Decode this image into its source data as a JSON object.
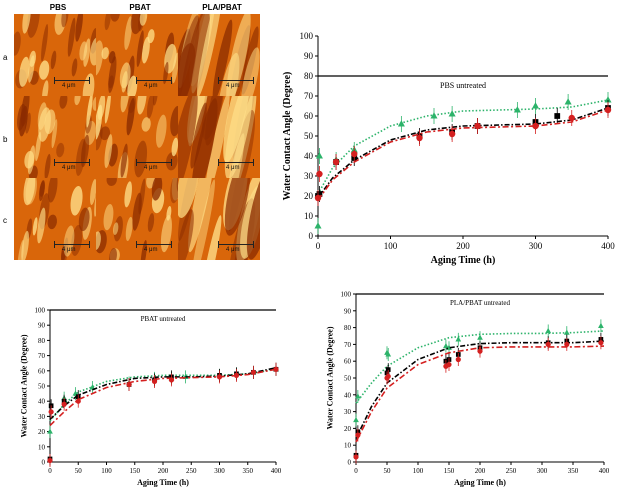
{
  "afm": {
    "columns": [
      "PBS",
      "PBAT",
      "PLA/PBAT"
    ],
    "rows": [
      "a",
      "b",
      "c"
    ],
    "scale_label": "4 μm",
    "colors": {
      "dark": "#8a2b00",
      "mid": "#d9660a",
      "light": "#ffe08a"
    }
  },
  "chart_data": [
    {
      "type": "scatter",
      "title": "PBS untreated",
      "xlabel": "Aging Time (h)",
      "ylabel": "Water Contact Angle (Degree)",
      "xlim": [
        0,
        400
      ],
      "ylim": [
        0,
        100
      ],
      "xticks": [
        0,
        100,
        200,
        300,
        400
      ],
      "yticks": [
        0,
        10,
        20,
        30,
        40,
        50,
        60,
        70,
        80,
        90,
        100
      ],
      "reference_line_y": 80,
      "series": [
        {
          "color": "#2cb36a",
          "marker": "triangle",
          "x": [
            0,
            2,
            25,
            50,
            115,
            160,
            185,
            275,
            300,
            345,
            400
          ],
          "y": [
            5,
            40,
            38,
            43,
            56,
            60,
            61,
            63,
            65,
            67,
            68
          ],
          "fit_x": [
            0,
            20,
            50,
            100,
            150,
            200,
            250,
            300,
            350,
            400
          ],
          "fit_y": [
            21,
            34,
            45,
            55,
            60,
            62.5,
            63,
            63.5,
            64.5,
            68
          ]
        },
        {
          "color": "#000000",
          "marker": "square",
          "x": [
            0,
            2,
            25,
            50,
            140,
            185,
            220,
            300,
            330,
            400
          ],
          "y": [
            20,
            21,
            37,
            39,
            50,
            52,
            55,
            57,
            60,
            64
          ],
          "fit_x": [
            0,
            20,
            50,
            100,
            150,
            200,
            250,
            300,
            350,
            400
          ],
          "fit_y": [
            19,
            29,
            38,
            48,
            53,
            55,
            55.5,
            56,
            58,
            64
          ]
        },
        {
          "color": "#d42020",
          "marker": "circle",
          "x": [
            0,
            2,
            25,
            50,
            140,
            185,
            220,
            300,
            350,
            400
          ],
          "y": [
            19,
            31,
            37,
            41,
            49,
            51,
            55,
            55,
            59,
            63
          ],
          "fit_x": [
            0,
            20,
            50,
            100,
            150,
            200,
            250,
            300,
            350,
            400
          ],
          "fit_y": [
            18,
            28,
            37,
            47,
            52,
            54,
            54.5,
            55,
            57,
            63
          ]
        }
      ]
    },
    {
      "type": "scatter",
      "title": "PBAT untreated",
      "xlabel": "Aging Time (h)",
      "ylabel": "Water Contact Angle (Degree)",
      "xlim": [
        0,
        400
      ],
      "ylim": [
        0,
        100
      ],
      "xticks": [
        0,
        50,
        100,
        150,
        200,
        250,
        300,
        350,
        400
      ],
      "yticks": [
        0,
        10,
        20,
        30,
        40,
        50,
        60,
        70,
        80,
        90,
        100
      ],
      "reference_line_y": 100,
      "series": [
        {
          "color": "#2cb36a",
          "marker": "triangle",
          "x": [
            0,
            25,
            45,
            75,
            140,
            185,
            215,
            240,
            300,
            330,
            360,
            400
          ],
          "y": [
            20,
            42,
            45,
            49,
            52,
            55,
            55,
            56,
            57,
            58,
            59,
            61
          ],
          "fit_x": [
            0,
            25,
            50,
            100,
            150,
            200,
            250,
            300,
            350,
            400
          ],
          "fit_y": [
            27,
            38,
            46,
            53,
            56,
            57,
            57,
            57,
            58,
            61
          ]
        },
        {
          "color": "#000000",
          "marker": "square",
          "x": [
            0,
            2,
            25,
            50,
            140,
            185,
            215,
            300,
            330,
            360,
            400
          ],
          "y": [
            2,
            37,
            40,
            43,
            51,
            54,
            56,
            57,
            58,
            59,
            61
          ],
          "fit_x": [
            0,
            25,
            50,
            100,
            150,
            200,
            250,
            300,
            350,
            400
          ],
          "fit_y": [
            28,
            37,
            44,
            51,
            55,
            56,
            56,
            56.5,
            58,
            62
          ]
        },
        {
          "color": "#d42020",
          "marker": "circle",
          "x": [
            0,
            2,
            25,
            50,
            140,
            185,
            215,
            300,
            330,
            360,
            400
          ],
          "y": [
            1,
            33,
            38,
            40,
            51,
            53,
            54,
            56,
            57,
            59,
            61
          ],
          "fit_x": [
            0,
            25,
            50,
            100,
            150,
            200,
            250,
            300,
            350,
            400
          ],
          "fit_y": [
            24,
            33,
            41,
            49,
            53,
            55,
            55.5,
            56,
            57.5,
            61
          ]
        }
      ]
    },
    {
      "type": "scatter",
      "title": "PLA/PBAT untreated",
      "xlabel": "Aging Time (h)",
      "ylabel": "Water Contact Angle (Degree)",
      "xlim": [
        0,
        400
      ],
      "ylim": [
        0,
        100
      ],
      "xticks": [
        0,
        50,
        100,
        150,
        200,
        250,
        300,
        350,
        400
      ],
      "yticks": [
        0,
        10,
        20,
        30,
        40,
        50,
        60,
        70,
        80,
        90,
        100
      ],
      "reference_line_y": 100,
      "series": [
        {
          "color": "#2cb36a",
          "marker": "triangle",
          "x": [
            0,
            3,
            50,
            52,
            145,
            150,
            165,
            200,
            310,
            340,
            395
          ],
          "y": [
            25,
            39,
            65,
            64,
            69,
            68,
            73,
            74,
            78,
            77,
            81
          ],
          "fit_x": [
            0,
            25,
            50,
            100,
            150,
            200,
            250,
            300,
            350,
            400
          ],
          "fit_y": [
            35,
            47,
            57,
            68,
            74,
            76,
            76.5,
            76.5,
            77,
            78
          ]
        },
        {
          "color": "#000000",
          "marker": "square",
          "x": [
            0,
            3,
            50,
            52,
            145,
            150,
            165,
            200,
            310,
            340,
            395
          ],
          "y": [
            4,
            18,
            53,
            55,
            60,
            61,
            64,
            68,
            71,
            72,
            73
          ],
          "fit_x": [
            0,
            25,
            50,
            100,
            150,
            200,
            250,
            300,
            350,
            400
          ],
          "fit_y": [
            14,
            33,
            47,
            61,
            68,
            70.5,
            71,
            71,
            71,
            72
          ]
        },
        {
          "color": "#d42020",
          "marker": "circle",
          "x": [
            0,
            3,
            50,
            52,
            145,
            150,
            165,
            200,
            310,
            340,
            395
          ],
          "y": [
            3,
            16,
            50,
            51,
            57,
            58,
            61,
            66,
            70,
            70,
            71
          ],
          "fit_x": [
            0,
            25,
            50,
            100,
            150,
            200,
            250,
            300,
            350,
            400
          ],
          "fit_y": [
            12,
            30,
            44,
            58,
            65,
            68,
            68.5,
            68.5,
            68.5,
            69
          ]
        }
      ]
    }
  ]
}
